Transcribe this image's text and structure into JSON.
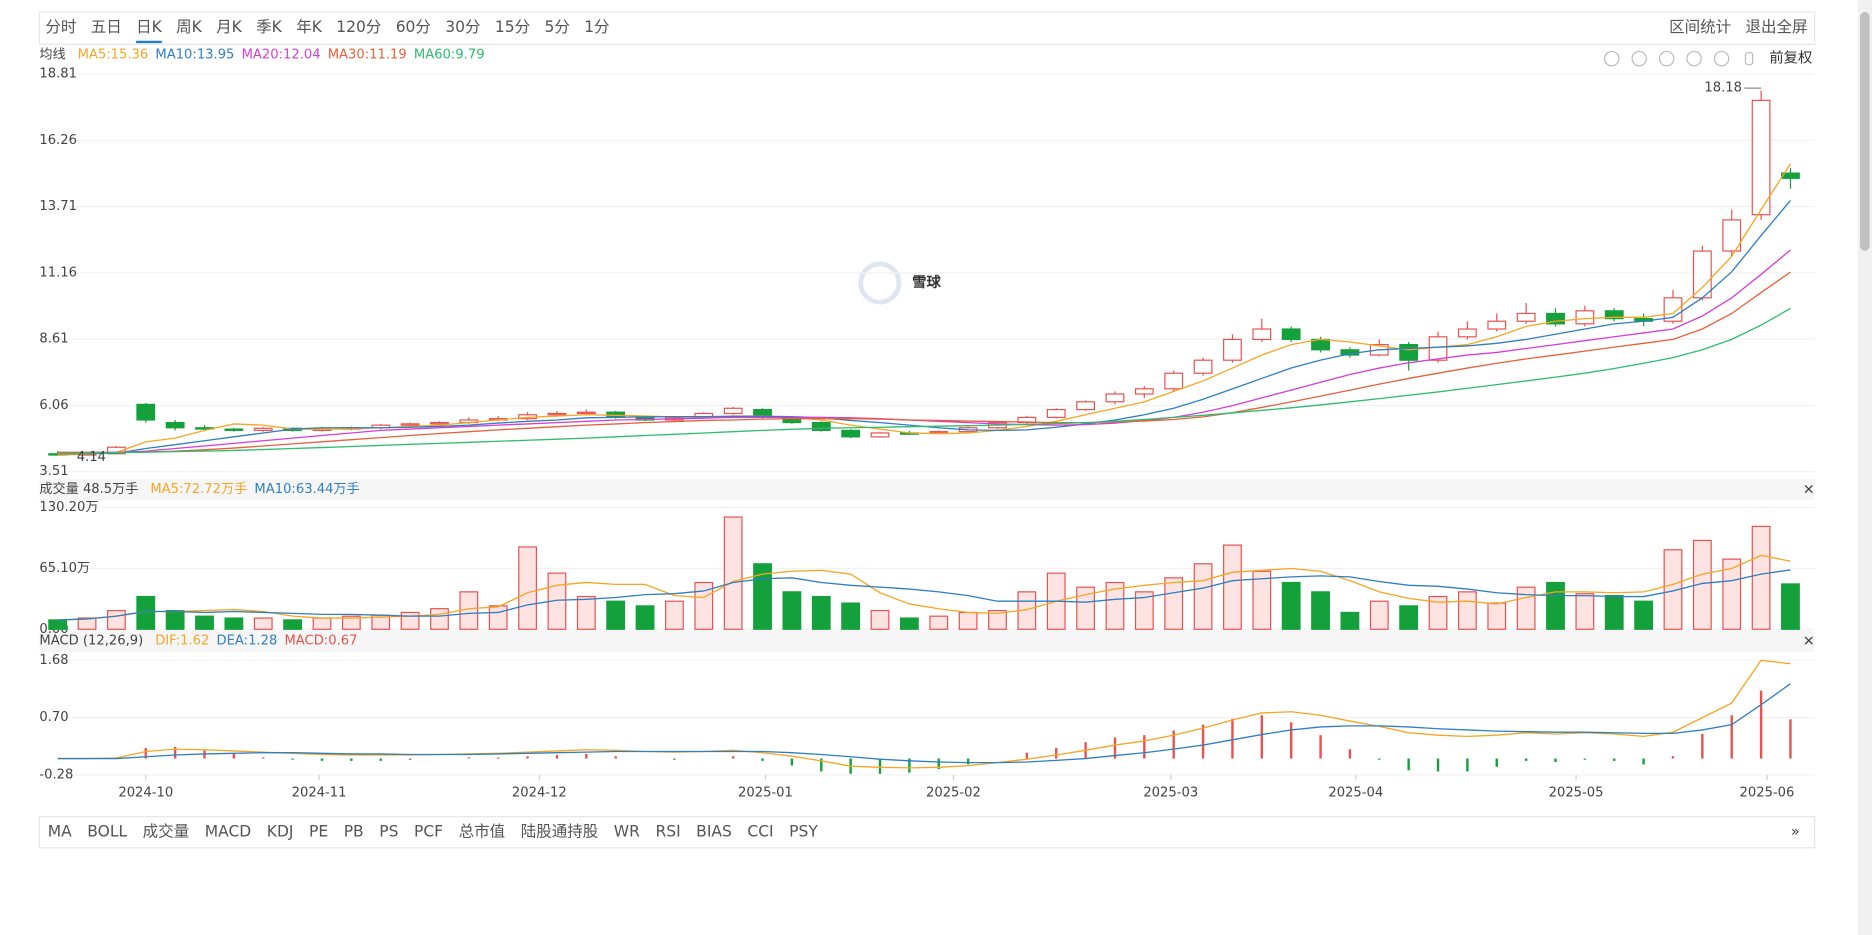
{
  "period_tabs": [
    "分时",
    "五日",
    "日K",
    "周K",
    "月K",
    "季K",
    "年K",
    "120分",
    "60分",
    "30分",
    "15分",
    "5分",
    "1分"
  ],
  "actions": [
    "区间统计",
    "退出全屏"
  ],
  "adjust": "前复权",
  "watermark": "雪球",
  "indicator_tabs": [
    "MA",
    "BOLL",
    "成交量",
    "MACD",
    "KDJ",
    "PE",
    "PB",
    "PS",
    "PCF",
    "总市值",
    "陆股通持股",
    "WR",
    "RSI",
    "BIAS",
    "CCI",
    "PSY"
  ],
  "chart_data": [
    {
      "type": "candlestick",
      "legend_title": "均线",
      "up_color": "#e8524f",
      "down_color": "#14a03a",
      "ylim": [
        3.51,
        18.81
      ],
      "yticks": [
        3.51,
        6.06,
        8.61,
        11.16,
        13.71,
        16.26,
        18.81
      ],
      "candles": [
        [
          4.2,
          4.3,
          4.14,
          4.15
        ],
        [
          4.15,
          4.25,
          4.15,
          4.2
        ],
        [
          4.2,
          4.5,
          4.18,
          4.45
        ],
        [
          6.1,
          6.15,
          5.4,
          5.5
        ],
        [
          5.4,
          5.5,
          5.1,
          5.2
        ],
        [
          5.2,
          5.3,
          5.1,
          5.15
        ],
        [
          5.15,
          5.2,
          5.05,
          5.1
        ],
        [
          5.1,
          5.22,
          5.05,
          5.18
        ],
        [
          5.18,
          5.2,
          5.05,
          5.1
        ],
        [
          5.1,
          5.2,
          5.05,
          5.15
        ],
        [
          5.15,
          5.25,
          5.1,
          5.2
        ],
        [
          5.2,
          5.35,
          5.15,
          5.3
        ],
        [
          5.3,
          5.4,
          5.25,
          5.35
        ],
        [
          5.35,
          5.45,
          5.3,
          5.4
        ],
        [
          5.4,
          5.6,
          5.35,
          5.5
        ],
        [
          5.5,
          5.65,
          5.45,
          5.55
        ],
        [
          5.55,
          5.8,
          5.5,
          5.7
        ],
        [
          5.7,
          5.85,
          5.65,
          5.75
        ],
        [
          5.75,
          5.9,
          5.7,
          5.8
        ],
        [
          5.8,
          5.85,
          5.55,
          5.6
        ],
        [
          5.6,
          5.65,
          5.45,
          5.5
        ],
        [
          5.5,
          5.65,
          5.45,
          5.6
        ],
        [
          5.6,
          5.8,
          5.55,
          5.75
        ],
        [
          5.75,
          6.0,
          5.7,
          5.95
        ],
        [
          5.9,
          5.95,
          5.55,
          5.6
        ],
        [
          5.6,
          5.65,
          5.35,
          5.4
        ],
        [
          5.4,
          5.45,
          5.05,
          5.1
        ],
        [
          5.1,
          5.15,
          4.8,
          4.85
        ],
        [
          4.85,
          5.05,
          4.82,
          5.0
        ],
        [
          5.0,
          5.08,
          4.92,
          4.98
        ],
        [
          5.0,
          5.1,
          4.95,
          5.05
        ],
        [
          5.05,
          5.25,
          5.0,
          5.2
        ],
        [
          5.2,
          5.45,
          5.15,
          5.4
        ],
        [
          5.4,
          5.65,
          5.35,
          5.6
        ],
        [
          5.6,
          5.95,
          5.55,
          5.9
        ],
        [
          5.9,
          6.25,
          5.85,
          6.2
        ],
        [
          6.2,
          6.6,
          6.1,
          6.5
        ],
        [
          6.5,
          6.8,
          6.35,
          6.7
        ],
        [
          6.7,
          7.4,
          6.6,
          7.3
        ],
        [
          7.3,
          7.9,
          7.2,
          7.8
        ],
        [
          7.8,
          8.8,
          7.7,
          8.6
        ],
        [
          8.6,
          9.4,
          8.5,
          9.0
        ],
        [
          9.0,
          9.1,
          8.5,
          8.6
        ],
        [
          8.6,
          8.7,
          8.1,
          8.2
        ],
        [
          8.2,
          8.3,
          7.9,
          8.0
        ],
        [
          8.0,
          8.6,
          7.95,
          8.4
        ],
        [
          8.4,
          8.5,
          7.4,
          7.8
        ],
        [
          7.8,
          8.9,
          7.7,
          8.7
        ],
        [
          8.7,
          9.3,
          8.6,
          9.0
        ],
        [
          9.0,
          9.6,
          8.9,
          9.3
        ],
        [
          9.3,
          10.0,
          9.2,
          9.6
        ],
        [
          9.6,
          9.8,
          9.1,
          9.2
        ],
        [
          9.2,
          9.9,
          9.1,
          9.7
        ],
        [
          9.7,
          9.8,
          9.3,
          9.4
        ],
        [
          9.4,
          9.6,
          9.1,
          9.3
        ],
        [
          9.3,
          10.5,
          9.2,
          10.2
        ],
        [
          10.2,
          12.2,
          10.1,
          12.0
        ],
        [
          12.0,
          13.6,
          11.8,
          13.2
        ],
        [
          13.4,
          18.18,
          13.2,
          17.8
        ],
        [
          15.0,
          15.2,
          14.4,
          14.8
        ]
      ],
      "series": [
        {
          "name": "MA5:15.36",
          "color": "#f5a623",
          "values": [
            4.15,
            4.18,
            4.25,
            4.66,
            4.8,
            5.1,
            5.35,
            5.3,
            5.15,
            5.14,
            5.16,
            5.2,
            5.25,
            5.3,
            5.4,
            5.5,
            5.6,
            5.65,
            5.7,
            5.68,
            5.65,
            5.62,
            5.6,
            5.65,
            5.65,
            5.6,
            5.5,
            5.3,
            5.15,
            5.0,
            4.97,
            5.0,
            5.1,
            5.25,
            5.45,
            5.7,
            5.95,
            6.2,
            6.6,
            7.0,
            7.5,
            8.0,
            8.4,
            8.6,
            8.5,
            8.35,
            8.2,
            8.3,
            8.4,
            8.7,
            9.1,
            9.3,
            9.4,
            9.45,
            9.45,
            9.6,
            10.6,
            11.8,
            13.6,
            15.36
          ]
        },
        {
          "name": "MA10:13.95",
          "color": "#2f7fc1",
          "values": [
            4.2,
            4.2,
            4.22,
            4.4,
            4.55,
            4.7,
            4.85,
            5.0,
            5.15,
            5.2,
            5.2,
            5.2,
            5.22,
            5.25,
            5.3,
            5.38,
            5.45,
            5.5,
            5.58,
            5.6,
            5.62,
            5.63,
            5.63,
            5.64,
            5.64,
            5.63,
            5.58,
            5.48,
            5.4,
            5.3,
            5.2,
            5.12,
            5.1,
            5.12,
            5.22,
            5.35,
            5.5,
            5.7,
            5.95,
            6.3,
            6.7,
            7.1,
            7.5,
            7.8,
            8.05,
            8.2,
            8.25,
            8.3,
            8.35,
            8.45,
            8.6,
            8.8,
            9.0,
            9.2,
            9.3,
            9.45,
            10.2,
            11.2,
            12.6,
            13.95
          ]
        },
        {
          "name": "MA20:12.04",
          "color": "#d43fd4",
          "values": [
            4.25,
            4.25,
            4.25,
            4.3,
            4.4,
            4.5,
            4.6,
            4.7,
            4.8,
            4.9,
            5.0,
            5.1,
            5.15,
            5.2,
            5.25,
            5.3,
            5.35,
            5.4,
            5.45,
            5.5,
            5.52,
            5.55,
            5.57,
            5.6,
            5.6,
            5.6,
            5.6,
            5.58,
            5.55,
            5.5,
            5.45,
            5.4,
            5.35,
            5.32,
            5.3,
            5.32,
            5.38,
            5.48,
            5.6,
            5.8,
            6.05,
            6.35,
            6.65,
            6.95,
            7.25,
            7.5,
            7.7,
            7.85,
            8.0,
            8.1,
            8.25,
            8.4,
            8.55,
            8.7,
            8.85,
            9.0,
            9.5,
            10.2,
            11.1,
            12.04
          ]
        },
        {
          "name": "MA30:11.19",
          "color": "#e8603c",
          "values": [
            4.25,
            4.25,
            4.25,
            4.27,
            4.3,
            4.35,
            4.42,
            4.5,
            4.58,
            4.66,
            4.74,
            4.82,
            4.9,
            4.98,
            5.05,
            5.12,
            5.18,
            5.24,
            5.3,
            5.35,
            5.4,
            5.44,
            5.48,
            5.5,
            5.53,
            5.55,
            5.55,
            5.55,
            5.53,
            5.5,
            5.48,
            5.46,
            5.44,
            5.42,
            5.4,
            5.4,
            5.42,
            5.46,
            5.52,
            5.62,
            5.78,
            5.98,
            6.2,
            6.42,
            6.65,
            6.88,
            7.1,
            7.3,
            7.5,
            7.68,
            7.85,
            8.0,
            8.15,
            8.3,
            8.45,
            8.6,
            9.0,
            9.6,
            10.4,
            11.19
          ]
        },
        {
          "name": "MA60:9.79",
          "color": "#2dbd6e",
          "values": [
            4.2,
            4.22,
            4.24,
            4.26,
            4.28,
            4.3,
            4.33,
            4.36,
            4.4,
            4.44,
            4.48,
            4.52,
            4.56,
            4.6,
            4.64,
            4.68,
            4.72,
            4.76,
            4.8,
            4.85,
            4.9,
            4.95,
            5.0,
            5.05,
            5.1,
            5.14,
            5.18,
            5.2,
            5.22,
            5.24,
            5.26,
            5.28,
            5.3,
            5.33,
            5.36,
            5.4,
            5.45,
            5.52,
            5.6,
            5.68,
            5.77,
            5.87,
            5.97,
            6.08,
            6.2,
            6.32,
            6.45,
            6.58,
            6.72,
            6.86,
            7.0,
            7.15,
            7.3,
            7.48,
            7.68,
            7.9,
            8.2,
            8.6,
            9.15,
            9.79
          ]
        }
      ]
    },
    {
      "type": "volume",
      "title": "成交量 48.5万手",
      "ylim": [
        0,
        130.2
      ],
      "yticks": [
        {
          "value": 0,
          "label": "0.00"
        },
        {
          "value": 65.1,
          "label": "65.10万"
        },
        {
          "value": 130.2,
          "label": "130.20万"
        }
      ],
      "values": [
        10,
        12,
        20,
        35,
        20,
        14,
        12,
        12,
        10,
        12,
        14,
        15,
        18,
        22,
        40,
        25,
        88,
        60,
        35,
        30,
        25,
        30,
        50,
        120,
        70,
        40,
        35,
        28,
        20,
        12,
        14,
        18,
        20,
        40,
        60,
        45,
        50,
        40,
        55,
        70,
        90,
        62,
        50,
        40,
        18,
        30,
        25,
        35,
        40,
        28,
        45,
        50,
        38,
        36,
        30,
        85,
        95,
        75,
        110,
        48.5
      ],
      "series": [
        {
          "name": "MA5:72.72万手",
          "color": "#f5a623",
          "values": [
            10,
            11,
            14,
            19,
            19,
            20,
            21,
            19,
            14,
            12,
            12,
            13,
            14,
            16,
            22,
            24,
            39,
            47,
            50,
            48,
            48,
            36,
            34,
            51,
            59,
            62,
            63,
            59,
            39,
            27,
            22,
            18,
            17,
            21,
            30,
            37,
            43,
            47,
            50,
            52,
            61,
            63,
            65,
            62,
            52,
            40,
            33,
            29,
            30,
            27,
            34,
            40,
            40,
            39,
            40,
            48,
            59,
            65,
            79,
            72.72
          ]
        },
        {
          "name": "MA10:63.44万手",
          "color": "#2f7fc1",
          "values": [
            10,
            11,
            14,
            19,
            19,
            18,
            19,
            18,
            17,
            16,
            16,
            15,
            14,
            14,
            17,
            18,
            26,
            31,
            32,
            34,
            37,
            38,
            41,
            50,
            54,
            55,
            50,
            47,
            45,
            43,
            40,
            36,
            30,
            30,
            30,
            29,
            32,
            34,
            39,
            44,
            52,
            54,
            56,
            57,
            56,
            51,
            47,
            46,
            43,
            39,
            37,
            36,
            36,
            35,
            35,
            41,
            49,
            52,
            59,
            63.44
          ]
        }
      ]
    },
    {
      "type": "macd",
      "title": "MACD (12,26,9)",
      "negative_color": "#14a03a",
      "ylim": [
        -0.28,
        1.68
      ],
      "yticks": [
        -0.28,
        {
          "value": 0.7,
          "label": "0.70"
        },
        1.68
      ],
      "xticks": [
        {
          "value": 3.0,
          "label": "2024-10"
        },
        {
          "value": 8.9,
          "label": "2024-11"
        },
        {
          "value": 16.4,
          "label": "2024-12"
        },
        {
          "value": 24.1,
          "label": "2025-01"
        },
        {
          "value": 30.5,
          "label": "2025-02"
        },
        {
          "value": 37.9,
          "label": "2025-03"
        },
        {
          "value": 44.2,
          "label": "2025-04"
        },
        {
          "value": 51.7,
          "label": "2025-05"
        },
        {
          "value": 58.2,
          "label": "2025-06"
        }
      ],
      "series": [
        {
          "name": "DIF:1.62",
          "color": "#f5a623",
          "values": [
            0,
            0,
            0.01,
            0.12,
            0.16,
            0.15,
            0.13,
            0.11,
            0.09,
            0.07,
            0.06,
            0.06,
            0.06,
            0.07,
            0.08,
            0.09,
            0.11,
            0.13,
            0.15,
            0.14,
            0.12,
            0.11,
            0.12,
            0.14,
            0.1,
            0.04,
            -0.04,
            -0.13,
            -0.15,
            -0.16,
            -0.15,
            -0.12,
            -0.07,
            -0.01,
            0.06,
            0.14,
            0.23,
            0.3,
            0.4,
            0.52,
            0.66,
            0.78,
            0.8,
            0.74,
            0.64,
            0.55,
            0.44,
            0.4,
            0.38,
            0.4,
            0.44,
            0.42,
            0.44,
            0.42,
            0.38,
            0.45,
            0.7,
            0.95,
            1.68,
            1.62
          ]
        },
        {
          "name": "DEA:1.28",
          "color": "#2f7fc1",
          "values": [
            0,
            0,
            0,
            0.03,
            0.06,
            0.08,
            0.09,
            0.1,
            0.1,
            0.09,
            0.08,
            0.08,
            0.07,
            0.07,
            0.07,
            0.08,
            0.09,
            0.1,
            0.11,
            0.12,
            0.12,
            0.12,
            0.12,
            0.12,
            0.12,
            0.1,
            0.07,
            0.03,
            -0.01,
            -0.04,
            -0.06,
            -0.07,
            -0.07,
            -0.06,
            -0.03,
            0,
            0.05,
            0.1,
            0.16,
            0.23,
            0.32,
            0.41,
            0.49,
            0.54,
            0.56,
            0.56,
            0.54,
            0.51,
            0.49,
            0.47,
            0.46,
            0.45,
            0.45,
            0.44,
            0.43,
            0.43,
            0.49,
            0.58,
            0.92,
            1.28
          ]
        },
        {
          "name": "MACD:0.67",
          "color": "#e8524f",
          "bars": true,
          "values": [
            0,
            0,
            0.02,
            0.18,
            0.2,
            0.14,
            0.08,
            0.02,
            -0.02,
            -0.04,
            -0.04,
            -0.04,
            -0.02,
            0,
            0.02,
            0.02,
            0.04,
            0.06,
            0.08,
            0.04,
            0,
            -0.02,
            0,
            0.04,
            -0.04,
            -0.12,
            -0.22,
            -0.26,
            -0.26,
            -0.24,
            -0.18,
            -0.1,
            0,
            0.1,
            0.18,
            0.28,
            0.36,
            0.4,
            0.48,
            0.58,
            0.68,
            0.74,
            0.62,
            0.4,
            0.16,
            -0.02,
            -0.2,
            -0.22,
            -0.22,
            -0.14,
            -0.04,
            -0.06,
            -0.02,
            -0.04,
            -0.1,
            0.04,
            0.42,
            0.74,
            1.16,
            0.67
          ]
        }
      ]
    }
  ]
}
